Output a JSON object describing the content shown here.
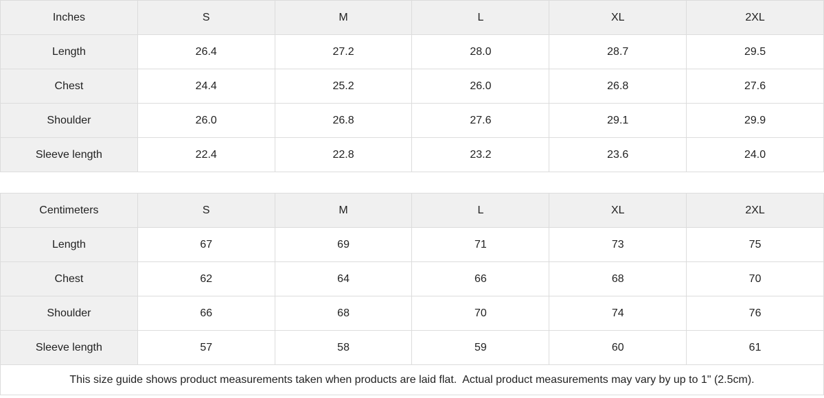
{
  "colors": {
    "header_bg": "#f0f0f0",
    "cell_bg": "#ffffff",
    "border": "#dcdcdc",
    "text": "#222222"
  },
  "inches_table": {
    "unit_label": "Inches",
    "sizes": [
      "S",
      "M",
      "L",
      "XL",
      "2XL"
    ],
    "rows": [
      {
        "label": "Length",
        "values": [
          "26.4",
          "27.2",
          "28.0",
          "28.7",
          "29.5"
        ]
      },
      {
        "label": "Chest",
        "values": [
          "24.4",
          "25.2",
          "26.0",
          "26.8",
          "27.6"
        ]
      },
      {
        "label": "Shoulder",
        "values": [
          "26.0",
          "26.8",
          "27.6",
          "29.1",
          "29.9"
        ]
      },
      {
        "label": "Sleeve length",
        "values": [
          "22.4",
          "22.8",
          "23.2",
          "23.6",
          "24.0"
        ]
      }
    ]
  },
  "centimeters_table": {
    "unit_label": "Centimeters",
    "sizes": [
      "S",
      "M",
      "L",
      "XL",
      "2XL"
    ],
    "rows": [
      {
        "label": "Length",
        "values": [
          "67",
          "69",
          "71",
          "73",
          "75"
        ]
      },
      {
        "label": "Chest",
        "values": [
          "62",
          "64",
          "66",
          "68",
          "70"
        ]
      },
      {
        "label": "Shoulder",
        "values": [
          "66",
          "68",
          "70",
          "74",
          "76"
        ]
      },
      {
        "label": "Sleeve length",
        "values": [
          "57",
          "58",
          "59",
          "60",
          "61"
        ]
      }
    ]
  },
  "footer_note": "This size guide shows product measurements taken when products are laid flat.  Actual product measurements may vary by up to 1\" (2.5cm)."
}
